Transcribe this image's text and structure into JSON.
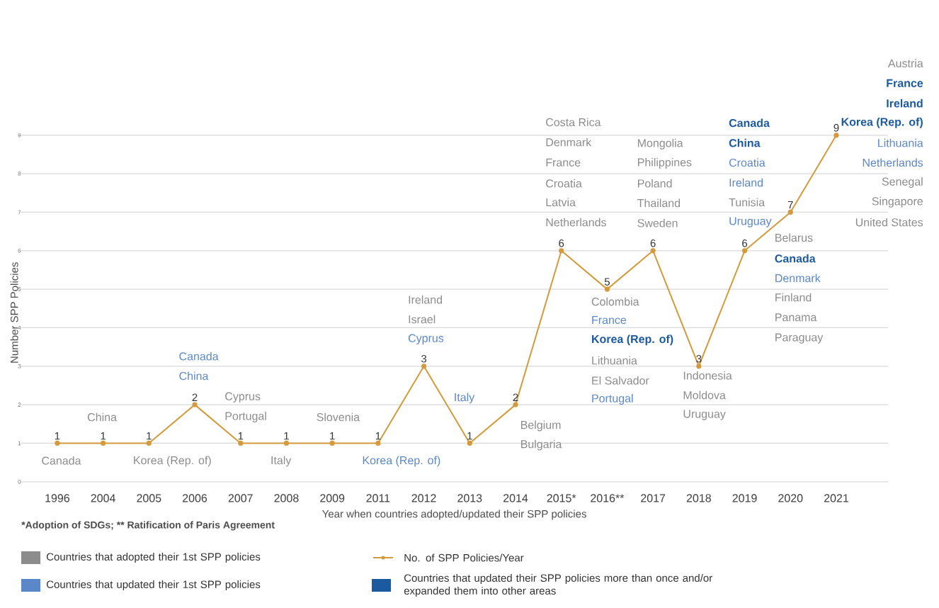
{
  "chart_data": {
    "type": "line",
    "xlabel": "Year when countries adopted/updated their SPP policies",
    "ylabel": "Number SPP Policies",
    "categories": [
      "1996",
      "2004",
      "2005",
      "2006",
      "2007",
      "2008",
      "2009",
      "2011",
      "2012",
      "2013",
      "2014",
      "2015*",
      "2016**",
      "2017",
      "2018",
      "2019",
      "2020",
      "2021"
    ],
    "ylim": [
      0,
      9
    ],
    "yticks": [
      0,
      1,
      2,
      3,
      4,
      5,
      6,
      7,
      8,
      9
    ],
    "grid": "y",
    "marker": "circle",
    "data_labels": true,
    "legend": "bottom",
    "series": [
      {
        "name": "No. of SPP Policies/Year",
        "color": "#d49a3c",
        "values": [
          1,
          1,
          1,
          2,
          1,
          1,
          1,
          1,
          3,
          1,
          2,
          6,
          5,
          6,
          3,
          6,
          7,
          9
        ]
      },
      {
        "name": "Countries that adopted their 1st SPP policies",
        "type": "bar",
        "color": "#8c8c8c",
        "values": [
          null,
          null,
          null,
          null,
          null,
          null,
          null,
          null,
          null,
          null,
          null,
          null,
          null,
          null,
          null,
          null,
          null,
          null
        ]
      },
      {
        "name": "Countries that updated their 1st SPP policies",
        "type": "bar",
        "color": "#5b87c9",
        "values": [
          null,
          null,
          null,
          null,
          null,
          null,
          null,
          null,
          null,
          null,
          null,
          null,
          null,
          null,
          null,
          null,
          null,
          null
        ]
      },
      {
        "name": "Countries that updated their SPP policies more than once and/or expanded them into other areas",
        "type": "bar",
        "color": "#1c5aa0",
        "values": [
          null,
          null,
          null,
          null,
          null,
          null,
          null,
          null,
          null,
          null,
          null,
          null,
          null,
          null,
          null,
          null,
          null,
          null
        ]
      }
    ],
    "annotations": [
      "*Adoption of SDGs; ** Ratification of Paris Agreement",
      "Canada",
      "China",
      "Korea (Rep. of)",
      "Canada",
      "China",
      "Cyprus",
      "Portugal",
      "Italy",
      "Slovenia",
      "Korea (Rep. of)",
      "Ireland",
      "Israel",
      "Cyprus",
      "Italy",
      "Belgium",
      "Bulgaria",
      "Costa Rica",
      "Denmark",
      "France",
      "Croatia",
      "Latvia",
      "Netherlands",
      "Colombia",
      "France",
      "Korea (Rep. of)",
      "Lithuania",
      "El Salvador",
      "Portugal",
      "Mongolia",
      "Philippines",
      "Poland",
      "Thailand",
      "Sweden",
      "Indonesia",
      "Moldova",
      "Uruguay",
      "Canada",
      "China",
      "Croatia",
      "Ireland",
      "Tunisia",
      "Uruguay",
      "Belarus",
      "Canada",
      "Denmark",
      "Finland",
      "Panama",
      "Paraguay",
      "Austria",
      "France",
      "Ireland",
      "Korea (Rep. of)",
      "Lithuania",
      "Netherlands",
      "Senegal",
      "Singapore",
      "United States"
    ]
  }
}
